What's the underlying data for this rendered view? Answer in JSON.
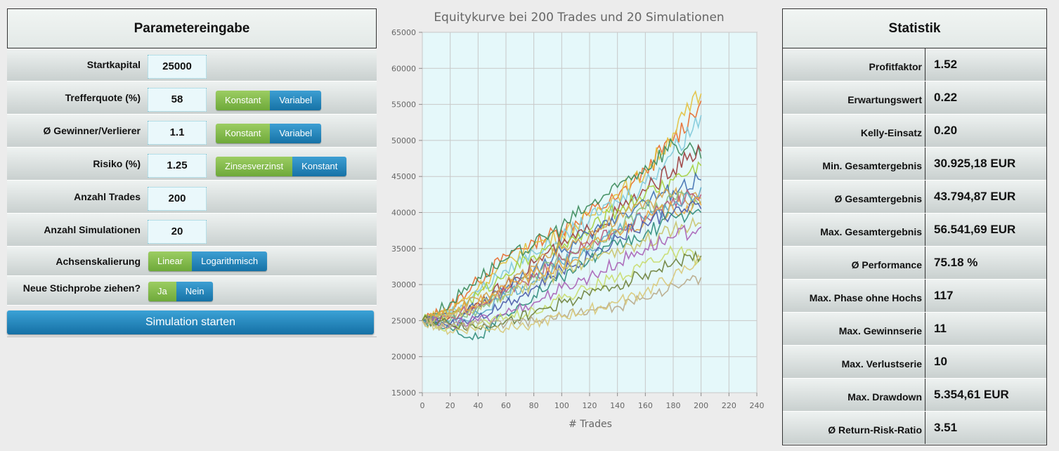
{
  "params": {
    "title": "Parametereingabe",
    "rows": [
      {
        "label": "Startkapital",
        "value": "25000"
      },
      {
        "label": "Trefferquote (%)",
        "value": "58",
        "buttons": [
          "Konstant",
          "Variabel"
        ]
      },
      {
        "label": "Ø Gewinner/Verlierer",
        "value": "1.1",
        "buttons": [
          "Konstant",
          "Variabel"
        ]
      },
      {
        "label": "Risiko (%)",
        "value": "1.25",
        "buttons": [
          "Zinsesverzinst",
          "Konstant"
        ]
      },
      {
        "label": "Anzahl Trades",
        "value": "200"
      },
      {
        "label": "Anzahl Simulationen",
        "value": "20"
      }
    ],
    "scaling": {
      "label": "Achsenskalierung",
      "buttons": [
        "Linear",
        "Logarithmisch"
      ]
    },
    "resample": {
      "label": "Neue Stichprobe ziehen?",
      "buttons": [
        "Ja",
        "Nein"
      ]
    },
    "start_label": "Simulation starten"
  },
  "stats": {
    "title": "Statistik",
    "rows": [
      {
        "label": "Profitfaktor",
        "value": "1.52"
      },
      {
        "label": "Erwartungswert",
        "value": "0.22"
      },
      {
        "label": "Kelly-Einsatz",
        "value": "0.20"
      },
      {
        "label": "Min. Gesamtergebnis",
        "value": "30.925,18 EUR"
      },
      {
        "label": "Ø Gesamtergebnis",
        "value": "43.794,87 EUR"
      },
      {
        "label": "Max. Gesamtergebnis",
        "value": "56.541,69 EUR"
      },
      {
        "label": "Ø Performance",
        "value": "75.18 %"
      },
      {
        "label": "Max. Phase ohne Hochs",
        "value": "117"
      },
      {
        "label": "Max. Gewinnserie",
        "value": "11"
      },
      {
        "label": "Max. Verlustserie",
        "value": "10"
      },
      {
        "label": "Max. Drawdown",
        "value": "5.354,61 EUR"
      },
      {
        "label": "Ø Return-Risk-Ratio",
        "value": "3.51"
      }
    ]
  },
  "colors": {
    "green": "#7fbb48",
    "blue": "#2186bd",
    "plot_bg": "#e5f8fa",
    "text_gray": "#666666"
  },
  "chart_data": {
    "type": "line",
    "title": "Equitykurve bei 200 Trades und 20 Simulationen",
    "xlabel": "# Trades",
    "ylabel": "",
    "xlim": [
      0,
      240
    ],
    "ylim": [
      15000,
      65000
    ],
    "x_ticks": [
      "0",
      "20",
      "40",
      "60",
      "80",
      "100",
      "120",
      "140",
      "160",
      "180",
      "200",
      "220",
      "240"
    ],
    "y_ticks": [
      "15000",
      "20000",
      "25000",
      "30000",
      "35000",
      "40000",
      "45000",
      "50000",
      "55000",
      "60000",
      "65000"
    ],
    "grid": true,
    "x": [
      0,
      20,
      40,
      60,
      80,
      100,
      120,
      140,
      160,
      180,
      200
    ],
    "series": [
      {
        "color": "#e8692a",
        "values": [
          25000,
          27000,
          30500,
          34000,
          36000,
          37500,
          40000,
          42000,
          46000,
          50000,
          55500
        ]
      },
      {
        "color": "#e3c03d",
        "values": [
          25000,
          26500,
          29500,
          33000,
          35500,
          37000,
          39500,
          42500,
          45500,
          51000,
          56500
        ]
      },
      {
        "color": "#7fc9d9",
        "values": [
          25000,
          26000,
          29000,
          32000,
          34500,
          36500,
          39000,
          41500,
          44000,
          48500,
          53500
        ]
      },
      {
        "color": "#3a8a5a",
        "values": [
          25000,
          27500,
          31000,
          33500,
          35500,
          38000,
          41000,
          43500,
          46500,
          49500,
          47500
        ]
      },
      {
        "color": "#9b3b3b",
        "values": [
          25000,
          25500,
          27500,
          30000,
          33000,
          35500,
          37500,
          40000,
          43000,
          46000,
          48500
        ]
      },
      {
        "color": "#a4d23f",
        "values": [
          25000,
          26000,
          28500,
          31500,
          34000,
          35000,
          37500,
          40500,
          42500,
          44500,
          46500
        ]
      },
      {
        "color": "#3f6fb0",
        "values": [
          25000,
          25500,
          27000,
          29500,
          32000,
          34500,
          37000,
          39500,
          41500,
          43000,
          44500
        ]
      },
      {
        "color": "#d6a24a",
        "values": [
          25000,
          26500,
          28000,
          30000,
          32500,
          35000,
          37000,
          39000,
          41500,
          42500,
          42000
        ]
      },
      {
        "color": "#8bc07a",
        "values": [
          25000,
          25000,
          26500,
          29000,
          31500,
          33500,
          35500,
          37500,
          40500,
          42000,
          41500
        ]
      },
      {
        "color": "#b5567a",
        "values": [
          25000,
          25500,
          27000,
          29000,
          31000,
          33500,
          35500,
          37500,
          39500,
          42000,
          42500
        ]
      },
      {
        "color": "#5aa7c4",
        "values": [
          25000,
          24500,
          26000,
          28500,
          30500,
          33000,
          35000,
          37500,
          39000,
          41000,
          43500
        ]
      },
      {
        "color": "#e8a33d",
        "values": [
          25000,
          26000,
          27500,
          29500,
          31500,
          32500,
          35000,
          37500,
          39000,
          40500,
          41000
        ]
      },
      {
        "color": "#4a5aa8",
        "values": [
          25000,
          24500,
          25500,
          27500,
          29500,
          32000,
          34000,
          36500,
          38500,
          40000,
          40500
        ]
      },
      {
        "color": "#2e8b7a",
        "values": [
          25000,
          24000,
          22500,
          26000,
          28500,
          31000,
          33500,
          35500,
          37000,
          39500,
          40000
        ]
      },
      {
        "color": "#c9c36a",
        "values": [
          25000,
          25500,
          27000,
          28500,
          30000,
          31500,
          33500,
          35000,
          36000,
          37500,
          38500
        ]
      },
      {
        "color": "#a75fb6",
        "values": [
          25000,
          24500,
          25000,
          26000,
          27500,
          29500,
          31000,
          33000,
          35000,
          36500,
          38000
        ]
      },
      {
        "color": "#c8dc6a",
        "values": [
          25000,
          24000,
          24500,
          25500,
          26500,
          28000,
          29500,
          31000,
          33000,
          34500,
          33500
        ]
      },
      {
        "color": "#6b7f3a",
        "values": [
          25000,
          24500,
          24000,
          25000,
          26000,
          27500,
          28500,
          30000,
          31500,
          33000,
          34000
        ]
      },
      {
        "color": "#b8a888",
        "values": [
          25000,
          24000,
          24500,
          24500,
          25000,
          25500,
          26500,
          27000,
          28000,
          30000,
          31000
        ]
      },
      {
        "color": "#d8c878",
        "values": [
          25000,
          23500,
          24000,
          24000,
          24500,
          25500,
          26500,
          27500,
          29000,
          31000,
          33500
        ]
      }
    ]
  }
}
